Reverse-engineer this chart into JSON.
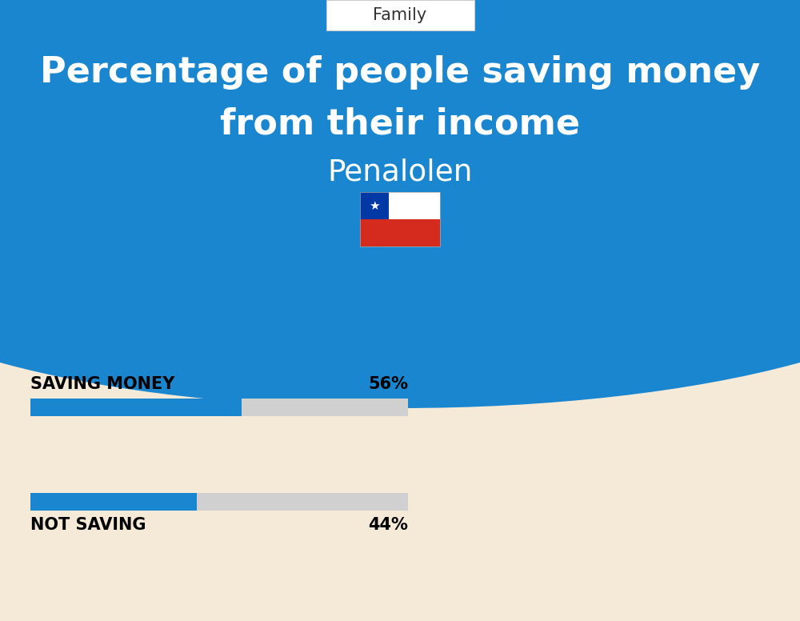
{
  "title_line1": "Percentage of people saving money",
  "title_line2": "from their income",
  "subtitle": "Penalolen",
  "category_label": "Family",
  "bar1_label": "SAVING MONEY",
  "bar1_value": 56,
  "bar1_pct": "56%",
  "bar2_label": "NOT SAVING",
  "bar2_value": 44,
  "bar2_pct": "44%",
  "blue_color": "#1A86D0",
  "bg_color": "#F5EAD8",
  "bar_bg_color": "#D0D0D0",
  "title_color": "#FFFFFF",
  "subtitle_color": "#FFFFFF",
  "label_color": "#000000",
  "category_box_bg": "#FFFFFF",
  "category_text_color": "#333333",
  "fig_width": 10.0,
  "fig_height": 7.76,
  "dpi": 100
}
